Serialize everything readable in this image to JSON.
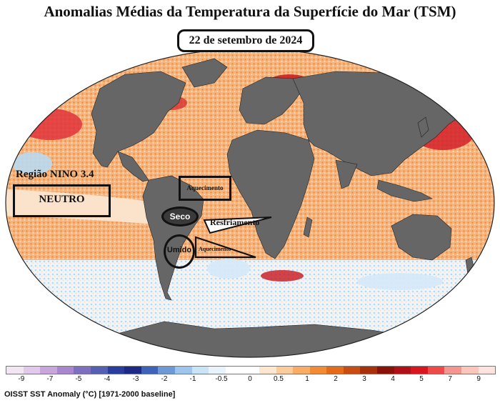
{
  "title": "Anomalias Médias da Temperatura da Superfície do Mar (TSM)",
  "date": "22 de setembro de 2024",
  "nino": {
    "label": "Região NINO 3.4",
    "value": "NEUTRO"
  },
  "annotations": {
    "aquecimento_atlantic": "Aquecimento",
    "seco": "Seco",
    "umido": "Umido",
    "resfriamento": "Resfriamento",
    "aquecimento_south": "Aquecimento"
  },
  "colorbar": {
    "colors": [
      "#f3e6f3",
      "#e2c8ea",
      "#c8a6dc",
      "#a987cf",
      "#7f6fc1",
      "#5560b5",
      "#2a3d9f",
      "#1c2a86",
      "#3e63b8",
      "#6d99d6",
      "#9ec6ec",
      "#c9e3f7",
      "#e8f4fb",
      "#ffffff",
      "#ffffff",
      "#fde7d0",
      "#fbcb9c",
      "#f8ac66",
      "#f38b35",
      "#e56a1a",
      "#c94c10",
      "#a8300a",
      "#8a1209",
      "#b01018",
      "#d8161f",
      "#ee4a4a",
      "#f59590",
      "#fac6bb",
      "#fce3dd"
    ],
    "tick_labels": [
      "-9",
      "-7",
      "-5",
      "-4",
      "-3",
      "-2",
      "-1",
      "-0.5",
      "0",
      "0.5",
      "1",
      "2",
      "3",
      "4",
      "5",
      "7",
      "9"
    ]
  },
  "footer": "OISST SST Anomaly (°C) [1971-2000 baseline]"
}
